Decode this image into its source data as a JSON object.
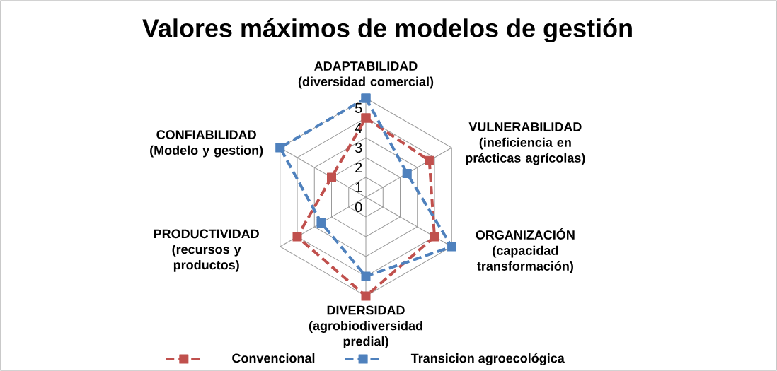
{
  "chart_data": {
    "type": "radar",
    "title": "Valores máximos de modelos de gestión",
    "categories": [
      "ADAPTABILIDAD (diversidad comercial)",
      "VULNERABILIDAD (ineficiencia en prácticas agrícolas)",
      "ORGANIZACIÓN (capacidad transformación)",
      "DIVERSIDAD (agrobiodiversidad predial)",
      "PRODUCTIVIDAD (recursos y productos)",
      "CONFIABILIDAD (Modelo y gestion)"
    ],
    "series": [
      {
        "name": "Convencional",
        "color": "#c0504d",
        "values": [
          4,
          3.7,
          4,
          5,
          4,
          2
        ]
      },
      {
        "name": "Transicion agroecológica",
        "color": "#4f81bd",
        "values": [
          5,
          2.4,
          5,
          4,
          2.6,
          5
        ]
      }
    ],
    "ylim": [
      0,
      5
    ],
    "yticks": [
      0,
      1,
      2,
      3,
      4,
      5
    ],
    "grid": true,
    "legend": "bottom",
    "marker": "square",
    "line_style": "dashed"
  }
}
